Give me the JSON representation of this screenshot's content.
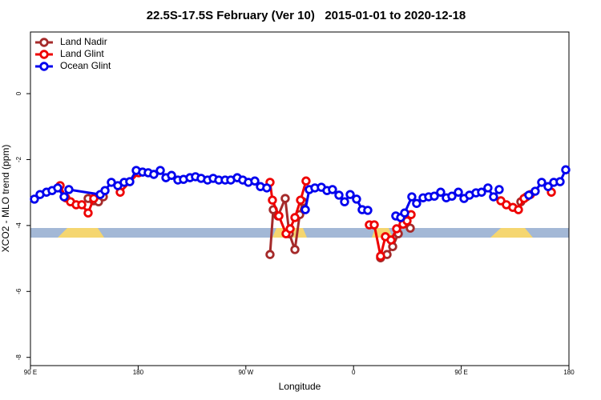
{
  "chart_data": {
    "type": "line",
    "title": "22.5S-17.5S February (Ver 10)   2015-01-01 to 2020-12-18",
    "xlabel": "Longitude",
    "ylabel": "XCO2 - MLO trend (ppm)",
    "xlim": [
      90,
      540
    ],
    "ylim": [
      -8.25,
      1.87
    ],
    "xticks": [
      {
        "value": 90,
        "label": "90 E"
      },
      {
        "value": 180,
        "label": "180"
      },
      {
        "value": 270,
        "label": "90 W"
      },
      {
        "value": 360,
        "label": "0"
      },
      {
        "value": 450,
        "label": "90 E"
      },
      {
        "value": 540,
        "label": "180"
      }
    ],
    "yticks": [
      0,
      -2,
      -4,
      -6,
      -8
    ],
    "legend": "top-left",
    "series": [
      {
        "name": "Land Nadir",
        "color": "#a52a2a",
        "x": [
          138.2,
          142.9,
          146.9,
          150.9,
          null,
          290.2,
          292.9,
          296.9,
          302.9,
          306.3,
          311.0,
          315.0,
          317.7,
          null,
          382.6,
          388.0,
          392.7,
          397.4,
          402.0,
          407.4,
          null,
          499.8,
          504.5
        ],
        "values": [
          -3.18,
          -3.25,
          -3.28,
          -3.13,
          null,
          -4.88,
          -3.52,
          -3.71,
          -3.18,
          -4.25,
          -4.73,
          -3.67,
          -3.28,
          null,
          -4.98,
          -4.88,
          -4.64,
          -4.25,
          -3.76,
          -4.08,
          null,
          -3.28,
          -3.13
        ]
      },
      {
        "name": "Land Glint",
        "color": "#ee0000",
        "x": [
          114.8,
          119.5,
          123.5,
          128.2,
          132.9,
          138.2,
          142.9,
          null,
          165.0,
          180.4,
          null,
          290.2,
          292.2,
          297.6,
          303.6,
          307.0,
          311.0,
          315.7,
          320.3,
          null,
          373.2,
          377.3,
          382.6,
          386.6,
          391.3,
          396.0,
          401.4,
          404.7,
          408.1,
          null,
          483.1,
          487.7,
          493.1,
          497.8,
          502.5,
          507.8,
          null,
          525.3
        ],
        "values": [
          -2.79,
          -3.16,
          -3.28,
          -3.37,
          -3.37,
          -3.62,
          -3.18,
          null,
          -2.99,
          -2.4,
          null,
          -2.69,
          -3.23,
          -3.71,
          -4.25,
          -4.1,
          -3.76,
          -3.23,
          -2.65,
          null,
          -3.98,
          -3.98,
          -4.93,
          -4.34,
          -4.44,
          -4.1,
          -3.96,
          -3.86,
          -3.67,
          null,
          -3.25,
          -3.37,
          -3.45,
          -3.52,
          -3.18,
          -3.06,
          null,
          -2.99
        ]
      },
      {
        "name": "Ocean Glint",
        "color": "#0000ee",
        "x": [
          93.3,
          98.0,
          103.4,
          108.1,
          112.8,
          118.1,
          122.1,
          148.3,
          152.3,
          157.6,
          163.0,
          168.3,
          173.0,
          178.4,
          183.7,
          188.4,
          193.1,
          198.5,
          203.2,
          207.9,
          213.2,
          217.9,
          223.3,
          227.9,
          232.6,
          238.0,
          242.7,
          247.4,
          252.7,
          257.4,
          262.8,
          267.4,
          272.1,
          277.5,
          282.2,
          287.5,
          null,
          319.7,
          323.0,
          327.7,
          333.1,
          337.8,
          342.4,
          347.8,
          352.5,
          357.2,
          362.5,
          367.2,
          371.9,
          null,
          395.3,
          399.4,
          402.7,
          408.7,
          412.7,
          418.1,
          422.8,
          427.5,
          432.8,
          437.5,
          442.2,
          447.6,
          452.3,
          456.9,
          462.3,
          467.0,
          472.3,
          477.0,
          481.7,
          null,
          506.5,
          511.8,
          517.2,
          522.6,
          527.3,
          532.6,
          537.3
        ],
        "values": [
          -3.2,
          -3.06,
          -2.99,
          -2.94,
          -2.86,
          -3.13,
          -2.91,
          -3.06,
          -2.94,
          -2.69,
          -2.79,
          -2.69,
          -2.67,
          -2.33,
          -2.38,
          -2.4,
          -2.45,
          -2.33,
          -2.55,
          -2.48,
          -2.62,
          -2.6,
          -2.55,
          -2.52,
          -2.57,
          -2.62,
          -2.57,
          -2.62,
          -2.62,
          -2.62,
          -2.55,
          -2.62,
          -2.69,
          -2.65,
          -2.82,
          -2.86,
          null,
          -3.52,
          -2.91,
          -2.86,
          -2.84,
          -2.94,
          -2.91,
          -3.08,
          -3.28,
          -3.06,
          -3.2,
          -3.52,
          -3.54,
          null,
          -3.71,
          -3.76,
          -3.62,
          -3.13,
          -3.33,
          -3.16,
          -3.13,
          -3.11,
          -2.99,
          -3.16,
          -3.11,
          -2.99,
          -3.18,
          -3.08,
          -3.01,
          -2.99,
          -2.86,
          -3.13,
          -2.91,
          null,
          -3.08,
          -2.96,
          -2.69,
          -2.82,
          -2.69,
          -2.67,
          -2.31
        ]
      }
    ]
  }
}
